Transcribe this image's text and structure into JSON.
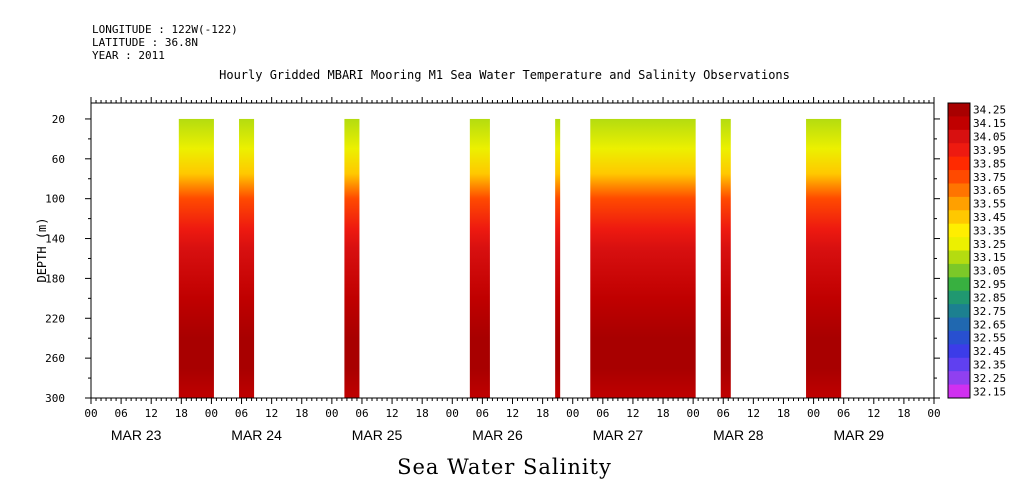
{
  "header": {
    "longitude": "LONGITUDE : 122W(-122)",
    "latitude": "LATITUDE : 36.8N",
    "year": "YEAR : 2011"
  },
  "chart_data": {
    "type": "heatmap",
    "title": "Hourly Gridded MBARI Mooring M1 Sea Water Temperature and Salinity Observations",
    "caption": "Sea Water Salinity",
    "xlabel": "",
    "ylabel": "DEPTH (m)",
    "x_unit": "hours since MAR 23 00:00",
    "xlim": [
      0,
      168
    ],
    "ylim": [
      300,
      4
    ],
    "y_ticks": [
      20,
      60,
      100,
      140,
      180,
      220,
      260,
      300
    ],
    "x_hour_labels": [
      "00",
      "06",
      "12",
      "18",
      "00",
      "06",
      "12",
      "18",
      "00",
      "06",
      "12",
      "18",
      "00",
      "06",
      "12",
      "18",
      "00",
      "06",
      "12",
      "18",
      "00",
      "06",
      "12",
      "18",
      "00",
      "06",
      "12",
      "18",
      "00"
    ],
    "day_labels": [
      "MAR 23",
      "MAR 24",
      "MAR 25",
      "MAR 26",
      "MAR 27",
      "MAR 28",
      "MAR 29"
    ],
    "data_segments_hours": [
      [
        17.5,
        24.5
      ],
      [
        29.5,
        32.5
      ],
      [
        50.5,
        53.5
      ],
      [
        75.5,
        79.5
      ],
      [
        92.5,
        93.5
      ],
      [
        99.5,
        120.5
      ],
      [
        125.5,
        127.5
      ],
      [
        142.5,
        149.5
      ]
    ],
    "profile_depth_m": [
      20,
      50,
      75,
      100,
      130,
      150,
      200,
      240,
      270,
      300
    ],
    "profile_salinity": [
      33.15,
      33.25,
      33.45,
      33.75,
      33.95,
      34.05,
      34.1,
      34.2,
      34.25,
      34.15
    ],
    "colorbar": {
      "levels": [
        "34.25",
        "34.15",
        "34.05",
        "33.95",
        "33.85",
        "33.75",
        "33.65",
        "33.55",
        "33.45",
        "33.35",
        "33.25",
        "33.15",
        "33.05",
        "32.95",
        "32.85",
        "32.75",
        "32.65",
        "32.55",
        "32.45",
        "32.35",
        "32.25",
        "32.15"
      ],
      "colors": [
        "#a80000",
        "#c00000",
        "#d81010",
        "#ee1a10",
        "#ff2a00",
        "#ff4a00",
        "#ff7400",
        "#ffa000",
        "#ffc800",
        "#ffee00",
        "#ecf000",
        "#b4dc10",
        "#7cc828",
        "#38b040",
        "#209870",
        "#1c8090",
        "#2068b0",
        "#2850d0",
        "#3c3ce8",
        "#6040f0",
        "#9040f0",
        "#d030f0"
      ]
    }
  }
}
